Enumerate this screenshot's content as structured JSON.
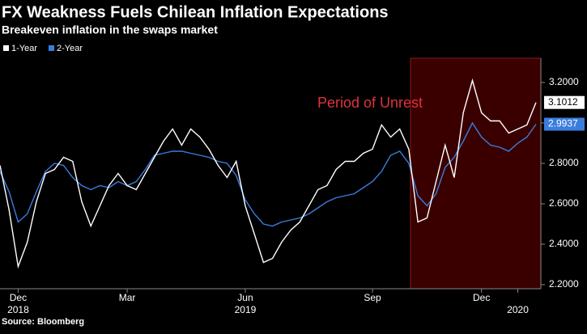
{
  "chart_data": {
    "type": "line",
    "title": "FX Weakness Fuels Chilean Inflation Expectations",
    "subtitle": "Breakeven inflation in the swaps market",
    "annotation": "Period of Unrest",
    "source": "Source: Bloomberg",
    "categories": [
      null,
      null,
      "Dec",
      null,
      null,
      null,
      null,
      null,
      null,
      null,
      null,
      null,
      null,
      null,
      "Mar",
      null,
      null,
      null,
      null,
      null,
      null,
      null,
      null,
      null,
      null,
      null,
      null,
      "Jun",
      null,
      null,
      null,
      null,
      null,
      null,
      null,
      null,
      null,
      null,
      null,
      null,
      null,
      "Sep",
      null,
      null,
      null,
      null,
      null,
      null,
      null,
      null,
      null,
      null,
      null,
      "Dec",
      null,
      null,
      null,
      null,
      null,
      null
    ],
    "years": [
      null,
      null,
      "2018",
      null,
      null,
      null,
      null,
      null,
      null,
      null,
      null,
      null,
      null,
      null,
      null,
      null,
      null,
      null,
      null,
      null,
      null,
      null,
      null,
      null,
      null,
      null,
      null,
      "2019",
      null,
      null,
      null,
      null,
      null,
      null,
      null,
      null,
      null,
      null,
      null,
      null,
      null,
      null,
      null,
      null,
      null,
      null,
      null,
      null,
      null,
      null,
      null,
      null,
      null,
      null,
      null,
      null,
      null,
      "2020",
      null,
      null
    ],
    "series": [
      {
        "name": "1-Year",
        "color": "#ffffff",
        "values": [
          2.79,
          2.57,
          2.29,
          2.41,
          2.61,
          2.75,
          2.77,
          2.83,
          2.81,
          2.61,
          2.49,
          2.59,
          2.69,
          2.75,
          2.69,
          2.67,
          2.75,
          2.83,
          2.91,
          2.97,
          2.89,
          2.97,
          2.93,
          2.87,
          2.79,
          2.73,
          2.81,
          2.59,
          2.45,
          2.31,
          2.33,
          2.41,
          2.47,
          2.51,
          2.59,
          2.67,
          2.69,
          2.77,
          2.81,
          2.81,
          2.85,
          2.87,
          2.99,
          2.93,
          2.97,
          2.87,
          2.51,
          2.53,
          2.71,
          2.89,
          2.73,
          3.05,
          3.21,
          3.05,
          3.01,
          3.01,
          2.95,
          2.97,
          2.99,
          3.1012
        ]
      },
      {
        "name": "2-Year",
        "color": "#3b7ddd",
        "values": [
          2.76,
          2.66,
          2.51,
          2.55,
          2.66,
          2.76,
          2.8,
          2.79,
          2.73,
          2.69,
          2.67,
          2.69,
          2.68,
          2.71,
          2.69,
          2.71,
          2.77,
          2.84,
          2.85,
          2.86,
          2.86,
          2.85,
          2.84,
          2.83,
          2.81,
          2.8,
          2.74,
          2.62,
          2.55,
          2.5,
          2.49,
          2.51,
          2.52,
          2.53,
          2.55,
          2.58,
          2.61,
          2.63,
          2.64,
          2.65,
          2.68,
          2.71,
          2.76,
          2.84,
          2.86,
          2.8,
          2.64,
          2.59,
          2.65,
          2.78,
          2.83,
          2.91,
          3.0,
          2.93,
          2.89,
          2.88,
          2.86,
          2.9,
          2.93,
          2.9937
        ]
      }
    ],
    "ylim": [
      2.18,
      3.32
    ],
    "yticks": [
      {
        "value": 2.2,
        "label": "2.2000"
      },
      {
        "value": 2.4,
        "label": "2.4000"
      },
      {
        "value": 2.6,
        "label": "2.6000"
      },
      {
        "value": 2.8,
        "label": "2.8000"
      },
      {
        "value": 3.0,
        "label": "3.0000"
      },
      {
        "value": 3.2,
        "label": "3.2000"
      }
    ],
    "grid": false
  }
}
